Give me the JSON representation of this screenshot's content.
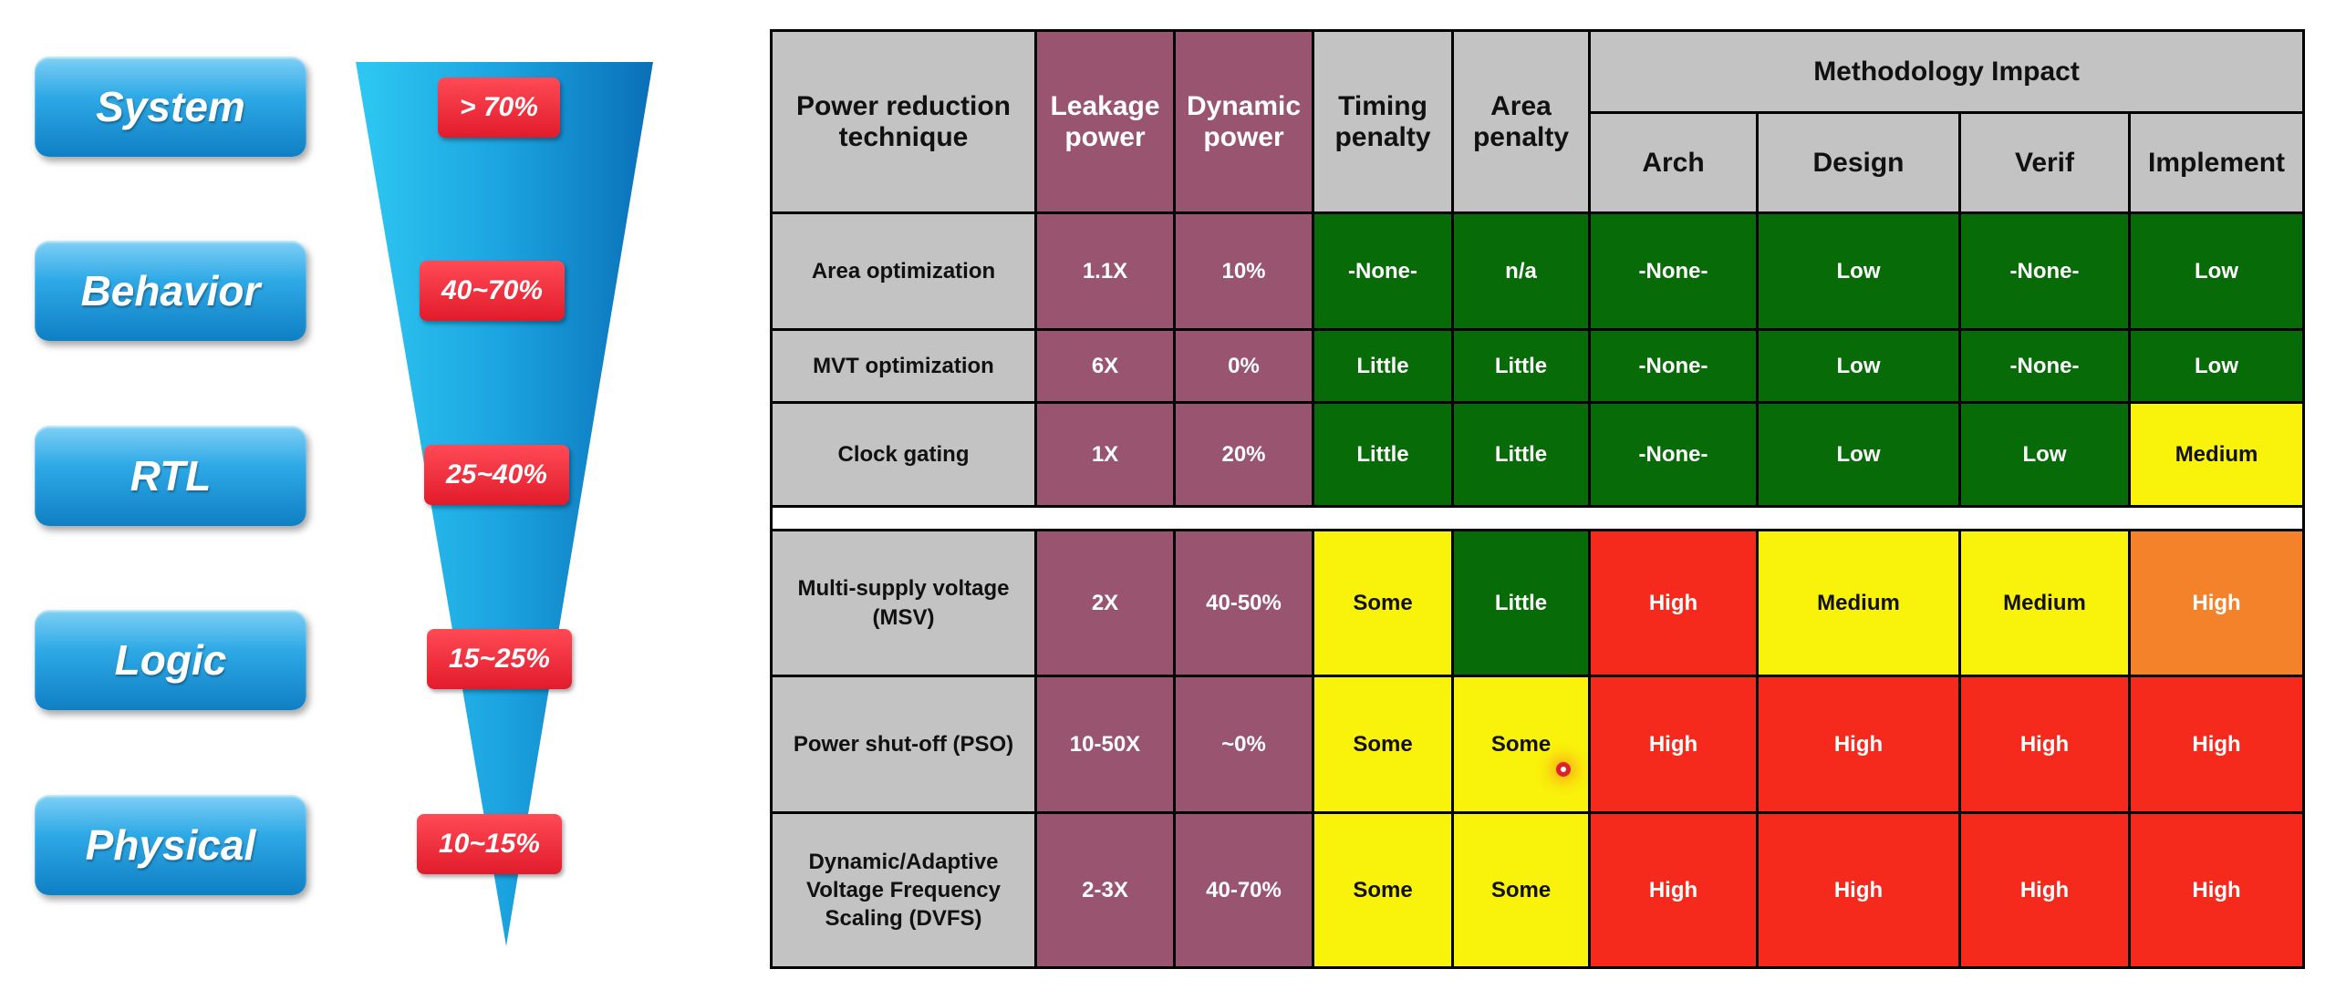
{
  "levels": [
    {
      "label": "System",
      "pct": "> 70%"
    },
    {
      "label": "Behavior",
      "pct": "40~70%"
    },
    {
      "label": "RTL",
      "pct": "25~40%"
    },
    {
      "label": "Logic",
      "pct": "15~25%"
    },
    {
      "label": "Physical",
      "pct": "10~15%"
    }
  ],
  "colors": {
    "level_blue": "#1e96d9",
    "badge_red": "#e21b2b",
    "funnel_blue": "#29a8e0",
    "header_gray": "#c3c3c3",
    "leakage_purple": "#99546f",
    "green": "#076b07",
    "yellow": "#f9f20a",
    "red": "#f52a1c",
    "orange": "#f3822a"
  },
  "table": {
    "header": {
      "technique": "Power reduction technique",
      "leakage": "Leakage power",
      "dynamic": "Dynamic power",
      "timing": "Timing penalty",
      "area": "Area penalty",
      "methodology": "Methodology Impact",
      "sub": [
        "Arch",
        "Design",
        "Verif",
        "Implement"
      ]
    },
    "rows": [
      {
        "technique": "Area optimization",
        "leakage": "1.1X",
        "dynamic": "10%",
        "cells": [
          {
            "text": "-None-",
            "color": "g"
          },
          {
            "text": "n/a",
            "color": "g"
          },
          {
            "text": "-None-",
            "color": "g"
          },
          {
            "text": "Low",
            "color": "g"
          },
          {
            "text": "-None-",
            "color": "g"
          },
          {
            "text": "Low",
            "color": "g"
          }
        ]
      },
      {
        "technique": "MVT optimization",
        "leakage": "6X",
        "dynamic": "0%",
        "cells": [
          {
            "text": "Little",
            "color": "g"
          },
          {
            "text": "Little",
            "color": "g"
          },
          {
            "text": "-None-",
            "color": "g"
          },
          {
            "text": "Low",
            "color": "g"
          },
          {
            "text": "-None-",
            "color": "g"
          },
          {
            "text": "Low",
            "color": "g"
          }
        ]
      },
      {
        "technique": "Clock gating",
        "leakage": "1X",
        "dynamic": "20%",
        "cells": [
          {
            "text": "Little",
            "color": "g"
          },
          {
            "text": "Little",
            "color": "g"
          },
          {
            "text": "-None-",
            "color": "g"
          },
          {
            "text": "Low",
            "color": "g"
          },
          {
            "text": "Low",
            "color": "g"
          },
          {
            "text": "Medium",
            "color": "y"
          }
        ]
      },
      {
        "technique": "Multi-supply voltage (MSV)",
        "leakage": "2X",
        "dynamic": "40-50%",
        "cells": [
          {
            "text": "Some",
            "color": "y"
          },
          {
            "text": "Little",
            "color": "g"
          },
          {
            "text": "High",
            "color": "r"
          },
          {
            "text": "Medium",
            "color": "y"
          },
          {
            "text": "Medium",
            "color": "y"
          },
          {
            "text": "High",
            "color": "o"
          }
        ]
      },
      {
        "technique": "Power shut-off (PSO)",
        "leakage": "10-50X",
        "dynamic": "~0%",
        "cells": [
          {
            "text": "Some",
            "color": "y"
          },
          {
            "text": "Some",
            "color": "y"
          },
          {
            "text": "High",
            "color": "r"
          },
          {
            "text": "High",
            "color": "r"
          },
          {
            "text": "High",
            "color": "r"
          },
          {
            "text": "High",
            "color": "r"
          }
        ]
      },
      {
        "technique": "Dynamic/Adaptive Voltage Frequency Scaling (DVFS)",
        "leakage": "2-3X",
        "dynamic": "40-70%",
        "cells": [
          {
            "text": "Some",
            "color": "y"
          },
          {
            "text": "Some",
            "color": "y"
          },
          {
            "text": "High",
            "color": "r"
          },
          {
            "text": "High",
            "color": "r"
          },
          {
            "text": "High",
            "color": "r"
          },
          {
            "text": "High",
            "color": "r"
          }
        ]
      }
    ]
  }
}
